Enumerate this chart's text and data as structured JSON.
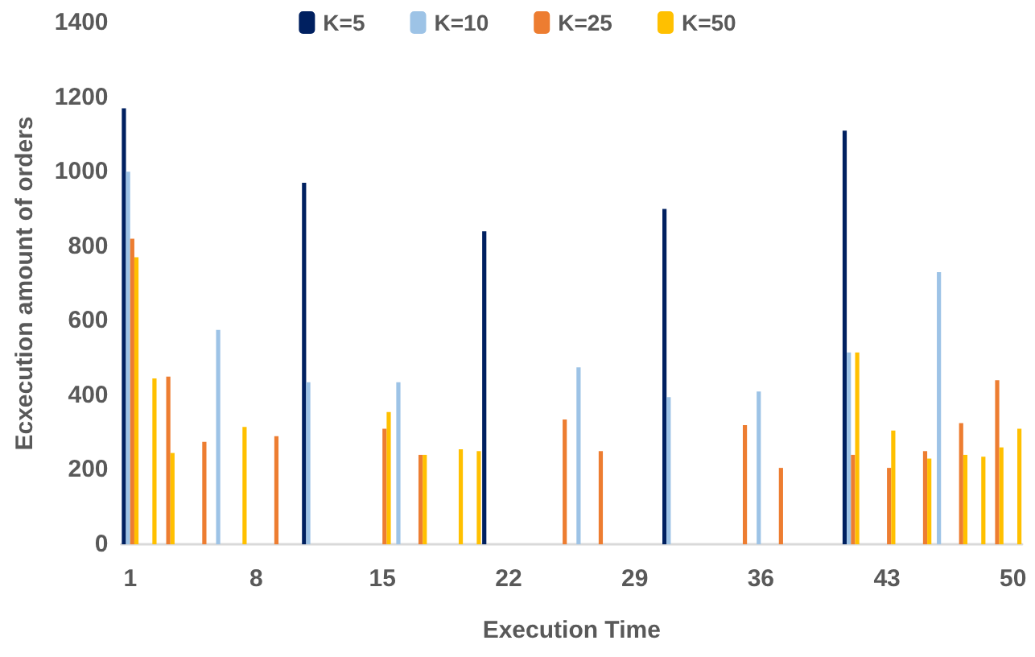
{
  "chart_data": {
    "type": "bar",
    "xlabel": "Execution Time",
    "ylabel": "Ecxecution amount of orders",
    "categories": [
      "1",
      null,
      null,
      null,
      null,
      null,
      null,
      "8",
      null,
      null,
      null,
      null,
      null,
      null,
      "15",
      null,
      null,
      null,
      null,
      null,
      null,
      "22",
      null,
      null,
      null,
      null,
      null,
      null,
      "29",
      null,
      null,
      null,
      null,
      null,
      null,
      "36",
      null,
      null,
      null,
      null,
      null,
      null,
      "43",
      null,
      null,
      null,
      null,
      null,
      null,
      "50"
    ],
    "series": [
      {
        "name": "K=5",
        "color": "#002060",
        "values": [
          1170,
          null,
          null,
          null,
          null,
          null,
          null,
          null,
          null,
          null,
          970,
          null,
          null,
          null,
          null,
          null,
          null,
          null,
          null,
          null,
          840,
          null,
          null,
          null,
          null,
          null,
          null,
          null,
          null,
          null,
          900,
          null,
          null,
          null,
          null,
          null,
          null,
          null,
          null,
          null,
          1110,
          null,
          null,
          null,
          null,
          null,
          null,
          null,
          null,
          null
        ]
      },
      {
        "name": "K=10",
        "color": "#9dc3e6",
        "values": [
          1000,
          null,
          null,
          null,
          null,
          575,
          null,
          null,
          null,
          null,
          435,
          null,
          null,
          null,
          null,
          435,
          null,
          null,
          null,
          null,
          null,
          null,
          null,
          null,
          null,
          475,
          null,
          null,
          null,
          null,
          395,
          null,
          null,
          null,
          null,
          410,
          null,
          null,
          null,
          null,
          515,
          null,
          null,
          null,
          null,
          730,
          null,
          null,
          null,
          null
        ]
      },
      {
        "name": "K=25",
        "color": "#ed7d31",
        "values": [
          820,
          null,
          450,
          null,
          275,
          null,
          null,
          null,
          290,
          null,
          null,
          null,
          null,
          null,
          310,
          null,
          240,
          null,
          null,
          null,
          null,
          null,
          null,
          null,
          335,
          null,
          250,
          null,
          null,
          null,
          null,
          null,
          null,
          null,
          320,
          null,
          205,
          null,
          null,
          null,
          240,
          null,
          205,
          null,
          250,
          null,
          325,
          null,
          440,
          null
        ]
      },
      {
        "name": "K=50",
        "color": "#ffc000",
        "values": [
          770,
          445,
          245,
          null,
          null,
          null,
          315,
          null,
          null,
          null,
          null,
          null,
          null,
          null,
          355,
          null,
          240,
          null,
          255,
          250,
          null,
          null,
          null,
          null,
          null,
          null,
          null,
          null,
          null,
          null,
          null,
          null,
          null,
          null,
          null,
          null,
          null,
          null,
          null,
          null,
          515,
          null,
          305,
          null,
          230,
          null,
          240,
          235,
          260,
          310
        ]
      }
    ],
    "ylim": [
      0,
      1400
    ],
    "yticks": [
      0,
      200,
      400,
      600,
      800,
      1000,
      1200,
      1400
    ],
    "grid": false,
    "legend": "top"
  }
}
